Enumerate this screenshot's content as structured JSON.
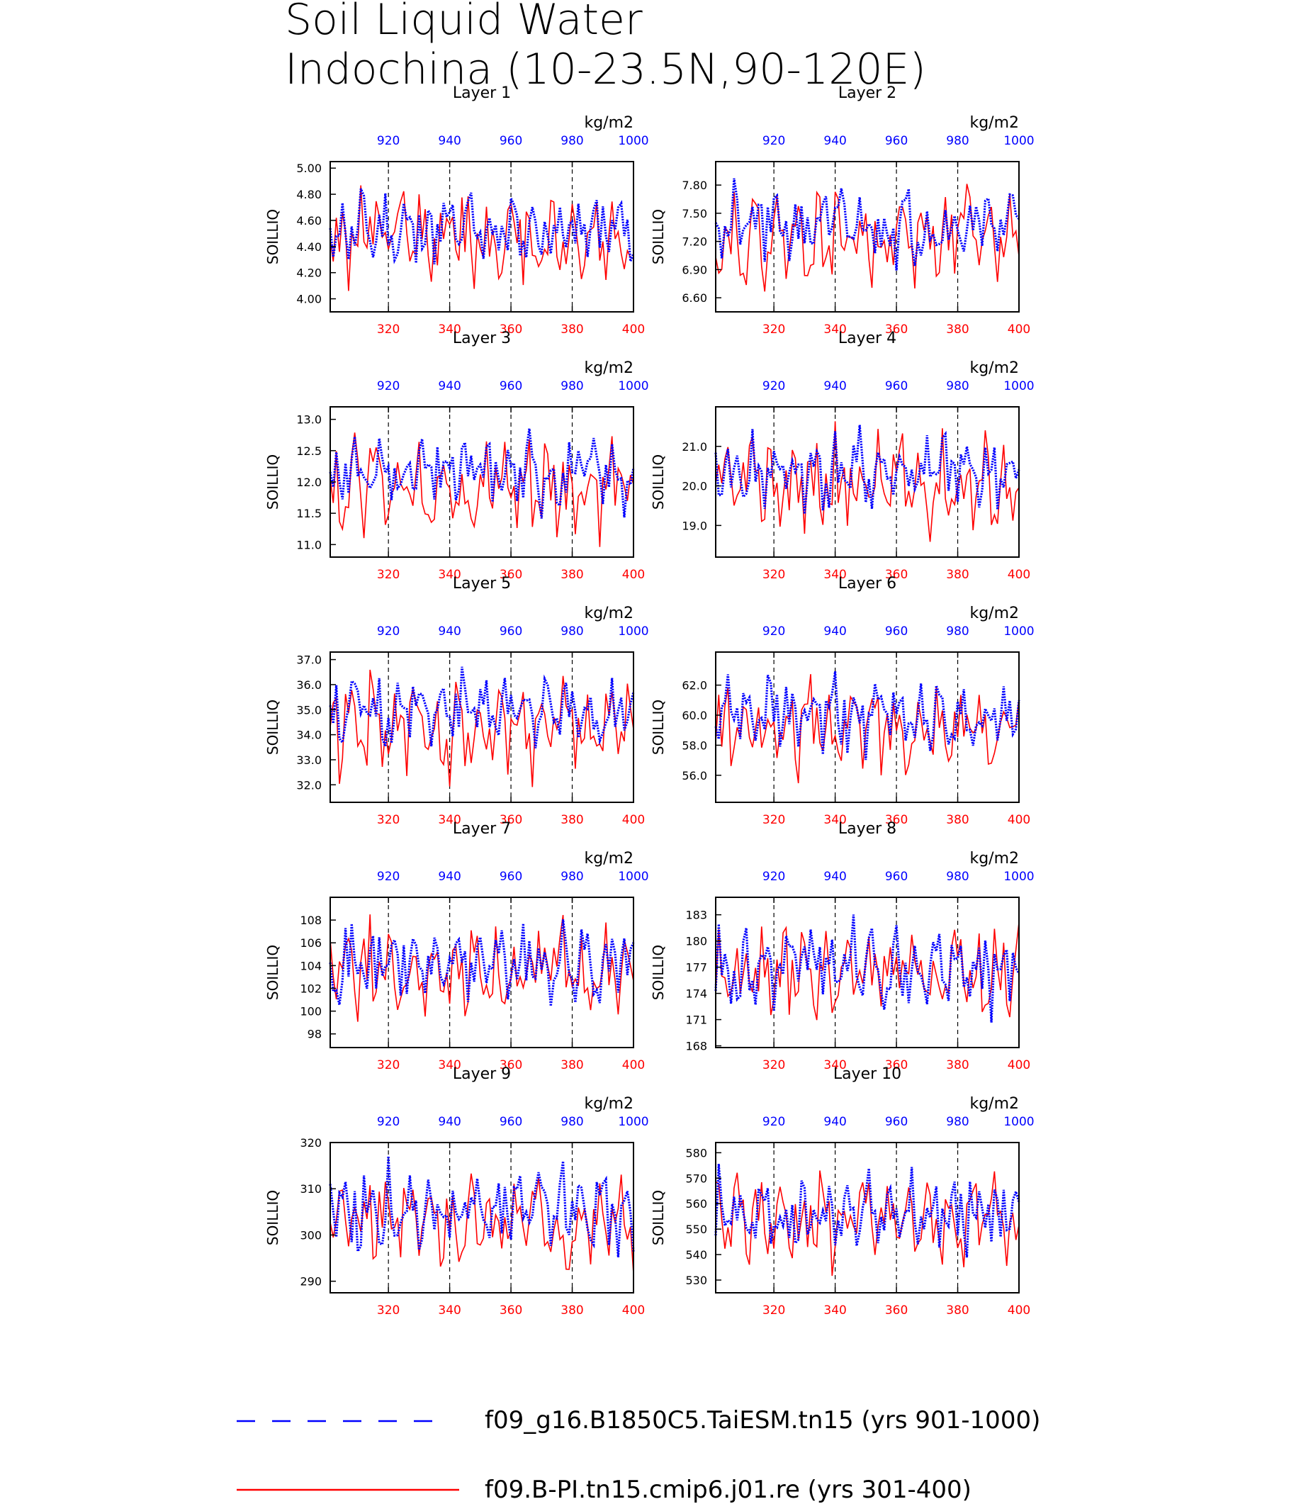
{
  "title_line1": "Soil Liquid Water",
  "title_line2": "Indochina (10-23.5N,90-120E)",
  "units": "kg/m2",
  "ylabel": "SOILLIQ",
  "colors": {
    "series_a": "#0000ff",
    "series_b": "#ff0000",
    "axis": "#000000"
  },
  "legend": [
    {
      "label": "f09_g16.B1850C5.TaiESM.tn15 (yrs 901-1000)",
      "color": "#0000ff",
      "style": "dashed"
    },
    {
      "label": "f09.B-PI.tn15.cmip6.j01.re (yrs 301-400)",
      "color": "#ff0000",
      "style": "solid"
    }
  ],
  "chart_data": [
    {
      "type": "line",
      "title": "Layer 1",
      "ylabel": "SOILLIQ",
      "units": "kg/m2",
      "xlim": [
        301,
        400
      ],
      "x_top_lim": [
        901,
        1000
      ],
      "x_ticks": [
        "320",
        "340",
        "360",
        "380",
        "400"
      ],
      "x_top_ticks": [
        "920",
        "940",
        "960",
        "980",
        "1000"
      ],
      "y_ticks": [
        "4.00",
        "4.20",
        "4.40",
        "4.60",
        "4.80",
        "5.00"
      ],
      "ylim": [
        3.9,
        5.05
      ],
      "series": [
        {
          "name": "f09_g16.B1850C5.TaiESM.tn15 (yrs 901-1000)",
          "range": [
            4.1,
            4.95
          ],
          "seed": 11
        },
        {
          "name": "f09.B-PI.tn15.cmip6.j01.re (yrs 301-400)",
          "range": [
            3.93,
            5.0
          ],
          "seed": 12
        }
      ]
    },
    {
      "type": "line",
      "title": "Layer 2",
      "ylabel": "SOILLIQ",
      "units": "kg/m2",
      "xlim": [
        301,
        400
      ],
      "x_top_lim": [
        901,
        1000
      ],
      "x_ticks": [
        "320",
        "340",
        "360",
        "380",
        "400"
      ],
      "x_top_ticks": [
        "920",
        "940",
        "960",
        "980",
        "1000"
      ],
      "y_ticks": [
        "6.60",
        "6.90",
        "7.20",
        "7.50",
        "7.80"
      ],
      "ylim": [
        6.45,
        8.05
      ],
      "series": [
        {
          "name": "f09_g16.B1850C5.TaiESM.tn15 (yrs 901-1000)",
          "range": [
            6.8,
            7.95
          ],
          "seed": 21
        },
        {
          "name": "f09.B-PI.tn15.cmip6.j01.re (yrs 301-400)",
          "range": [
            6.55,
            7.95
          ],
          "seed": 22
        }
      ]
    },
    {
      "type": "line",
      "title": "Layer 3",
      "ylabel": "SOILLIQ",
      "units": "kg/m2",
      "xlim": [
        301,
        400
      ],
      "x_top_lim": [
        901,
        1000
      ],
      "x_ticks": [
        "320",
        "340",
        "360",
        "380",
        "400"
      ],
      "x_top_ticks": [
        "920",
        "940",
        "960",
        "980",
        "1000"
      ],
      "y_ticks": [
        "11.0",
        "11.5",
        "12.0",
        "12.5",
        "13.0"
      ],
      "ylim": [
        10.8,
        13.2
      ],
      "series": [
        {
          "name": "f09_g16.B1850C5.TaiESM.tn15 (yrs 901-1000)",
          "range": [
            11.3,
            13.0
          ],
          "seed": 31
        },
        {
          "name": "f09.B-PI.tn15.cmip6.j01.re (yrs 301-400)",
          "range": [
            10.85,
            13.05
          ],
          "seed": 32
        }
      ]
    },
    {
      "type": "line",
      "title": "Layer 4",
      "ylabel": "SOILLIQ",
      "units": "kg/m2",
      "xlim": [
        301,
        400
      ],
      "x_top_lim": [
        901,
        1000
      ],
      "x_ticks": [
        "320",
        "340",
        "360",
        "380",
        "400"
      ],
      "x_top_ticks": [
        "920",
        "940",
        "960",
        "980",
        "1000"
      ],
      "y_ticks": [
        "19.0",
        "20.0",
        "21.0"
      ],
      "ylim": [
        18.2,
        22.0
      ],
      "series": [
        {
          "name": "f09_g16.B1850C5.TaiESM.tn15 (yrs 901-1000)",
          "range": [
            18.9,
            21.8
          ],
          "seed": 41
        },
        {
          "name": "f09.B-PI.tn15.cmip6.j01.re (yrs 301-400)",
          "range": [
            18.3,
            21.8
          ],
          "seed": 42
        }
      ]
    },
    {
      "type": "line",
      "title": "Layer 5",
      "ylabel": "SOILLIQ",
      "units": "kg/m2",
      "xlim": [
        301,
        400
      ],
      "x_top_lim": [
        901,
        1000
      ],
      "x_ticks": [
        "320",
        "340",
        "360",
        "380",
        "400"
      ],
      "x_top_ticks": [
        "920",
        "940",
        "960",
        "980",
        "1000"
      ],
      "y_ticks": [
        "32.0",
        "33.0",
        "34.0",
        "35.0",
        "36.0",
        "37.0"
      ],
      "ylim": [
        31.3,
        37.3
      ],
      "series": [
        {
          "name": "f09_g16.B1850C5.TaiESM.tn15 (yrs 901-1000)",
          "range": [
            32.8,
            37.0
          ],
          "seed": 51
        },
        {
          "name": "f09.B-PI.tn15.cmip6.j01.re (yrs 301-400)",
          "range": [
            31.5,
            37.0
          ],
          "seed": 52
        }
      ]
    },
    {
      "type": "line",
      "title": "Layer 6",
      "ylabel": "SOILLIQ",
      "units": "kg/m2",
      "xlim": [
        301,
        400
      ],
      "x_top_lim": [
        901,
        1000
      ],
      "x_ticks": [
        "320",
        "340",
        "360",
        "380",
        "400"
      ],
      "x_top_ticks": [
        "920",
        "940",
        "960",
        "980",
        "1000"
      ],
      "y_ticks": [
        "56.0",
        "58.0",
        "60.0",
        "62.0"
      ],
      "ylim": [
        54.2,
        64.2
      ],
      "series": [
        {
          "name": "f09_g16.B1850C5.TaiESM.tn15 (yrs 901-1000)",
          "range": [
            56.5,
            63.4
          ],
          "seed": 61
        },
        {
          "name": "f09.B-PI.tn15.cmip6.j01.re (yrs 301-400)",
          "range": [
            55.0,
            63.4
          ],
          "seed": 62
        }
      ]
    },
    {
      "type": "line",
      "title": "Layer 7",
      "ylabel": "SOILLIQ",
      "units": "kg/m2",
      "xlim": [
        301,
        400
      ],
      "x_top_lim": [
        901,
        1000
      ],
      "x_ticks": [
        "320",
        "340",
        "360",
        "380",
        "400"
      ],
      "x_top_ticks": [
        "920",
        "940",
        "960",
        "980",
        "1000"
      ],
      "y_ticks": [
        "98",
        "100",
        "102",
        "104",
        "106",
        "108"
      ],
      "ylim": [
        96.8,
        110.0
      ],
      "series": [
        {
          "name": "f09_g16.B1850C5.TaiESM.tn15 (yrs 901-1000)",
          "range": [
            99.2,
            109.3
          ],
          "seed": 71
        },
        {
          "name": "f09.B-PI.tn15.cmip6.j01.re (yrs 301-400)",
          "range": [
            97.5,
            109.2
          ],
          "seed": 72
        }
      ]
    },
    {
      "type": "line",
      "title": "Layer 8",
      "ylabel": "SOILLIQ",
      "units": "kg/m2",
      "xlim": [
        301,
        400
      ],
      "x_top_lim": [
        901,
        1000
      ],
      "x_ticks": [
        "320",
        "340",
        "360",
        "380",
        "400"
      ],
      "x_top_ticks": [
        "920",
        "940",
        "960",
        "980",
        "1000"
      ],
      "y_ticks": [
        "168",
        "171",
        "174",
        "177",
        "180",
        "183"
      ],
      "ylim": [
        167.8,
        185.0
      ],
      "series": [
        {
          "name": "f09_g16.B1850C5.TaiESM.tn15 (yrs 901-1000)",
          "range": [
            170.0,
            184.2
          ],
          "seed": 81
        },
        {
          "name": "f09.B-PI.tn15.cmip6.j01.re (yrs 301-400)",
          "range": [
            168.5,
            183.5
          ],
          "seed": 82
        }
      ]
    },
    {
      "type": "line",
      "title": "Layer 9",
      "ylabel": "SOILLIQ",
      "units": "kg/m2",
      "xlim": [
        301,
        400
      ],
      "x_top_lim": [
        901,
        1000
      ],
      "x_ticks": [
        "320",
        "340",
        "360",
        "380",
        "400"
      ],
      "x_top_ticks": [
        "920",
        "940",
        "960",
        "980",
        "1000"
      ],
      "y_ticks": [
        "290",
        "300",
        "310",
        "320"
      ],
      "ylim": [
        287.5,
        320.0
      ],
      "series": [
        {
          "name": "f09_g16.B1850C5.TaiESM.tn15 (yrs 901-1000)",
          "range": [
            291.0,
            319.0
          ],
          "seed": 91
        },
        {
          "name": "f09.B-PI.tn15.cmip6.j01.re (yrs 301-400)",
          "range": [
            289.5,
            316.5
          ],
          "seed": 92
        }
      ]
    },
    {
      "type": "line",
      "title": "Layer 10",
      "ylabel": "SOILLIQ",
      "units": "kg/m2",
      "xlim": [
        301,
        400
      ],
      "x_top_lim": [
        901,
        1000
      ],
      "x_ticks": [
        "320",
        "340",
        "360",
        "380",
        "400"
      ],
      "x_top_ticks": [
        "920",
        "940",
        "960",
        "980",
        "1000"
      ],
      "y_ticks": [
        "530",
        "540",
        "550",
        "560",
        "570",
        "580"
      ],
      "ylim": [
        525.0,
        584.0
      ],
      "series": [
        {
          "name": "f09_g16.B1850C5.TaiESM.tn15 (yrs 901-1000)",
          "range": [
            532.0,
            580.0
          ],
          "seed": 101
        },
        {
          "name": "f09.B-PI.tn15.cmip6.j01.re (yrs 301-400)",
          "range": [
            528.0,
            579.0
          ],
          "seed": 102
        }
      ]
    }
  ]
}
